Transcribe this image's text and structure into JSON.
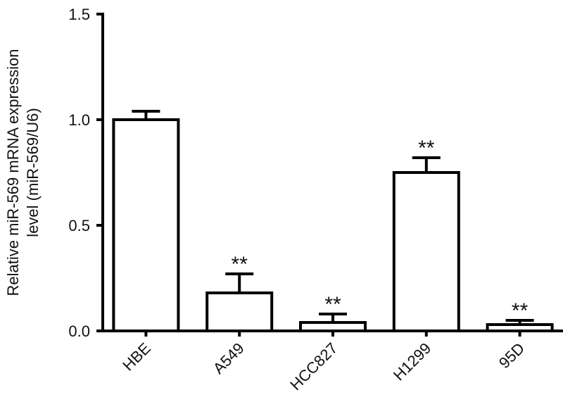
{
  "chart_data": {
    "type": "bar",
    "ylabel": [
      "Relative miR-569 mRNA expression",
      "level (miR-569/U6)"
    ],
    "categories": [
      "HBE",
      "A549",
      "HCC827",
      "H1299",
      "95D"
    ],
    "values": [
      1.0,
      0.18,
      0.04,
      0.75,
      0.03
    ],
    "errors": [
      0.04,
      0.09,
      0.04,
      0.07,
      0.02
    ],
    "significance": [
      null,
      "**",
      "**",
      "**",
      "**"
    ],
    "color": "#ffffff",
    "ylim": [
      0,
      1.5
    ],
    "yticks": [
      {
        "value": 0,
        "label": "0.0"
      },
      0.5,
      {
        "value": 1,
        "label": "1.0"
      },
      1.5
    ]
  }
}
